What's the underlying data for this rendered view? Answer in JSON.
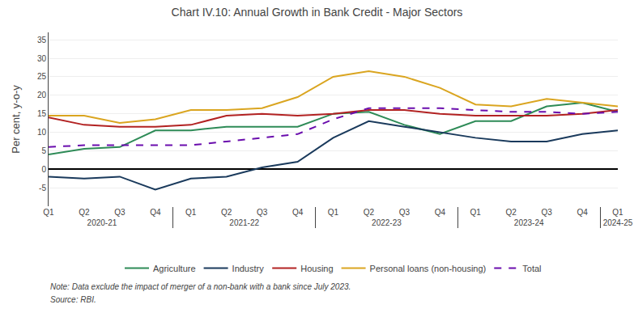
{
  "chart_data": {
    "type": "line",
    "title": "Chart IV.10: Annual Growth in Bank Credit - Major Sectors",
    "y_label": "Per cent, y-o-y",
    "categories": [
      "Q1",
      "Q2",
      "Q3",
      "Q4",
      "Q1",
      "Q2",
      "Q3",
      "Q4",
      "Q1",
      "Q2",
      "Q3",
      "Q4",
      "Q1",
      "Q2",
      "Q3",
      "Q4",
      "Q1"
    ],
    "category_groups": [
      "2020-21",
      "2020-21",
      "2020-21",
      "2020-21",
      "2021-22",
      "2021-22",
      "2021-22",
      "2021-22",
      "2022-23",
      "2022-23",
      "2022-23",
      "2022-23",
      "2023-24",
      "2023-24",
      "2023-24",
      "2023-24",
      "2024-25"
    ],
    "series": [
      {
        "name": "Agriculture",
        "color": "#2e8b57",
        "line_style": "solid",
        "values": [
          4.0,
          5.5,
          6.0,
          10.5,
          10.5,
          11.5,
          11.5,
          11.5,
          15.0,
          15.5,
          12.0,
          9.5,
          13.0,
          13.0,
          17.0,
          18.0,
          15.5
        ]
      },
      {
        "name": "Industry",
        "color": "#1a3a5c",
        "line_style": "solid",
        "values": [
          -2.0,
          -2.5,
          -2.0,
          -5.5,
          -2.5,
          -2.0,
          0.5,
          2.0,
          8.5,
          13.0,
          11.5,
          10.0,
          8.5,
          7.5,
          7.5,
          9.5,
          10.5
        ]
      },
      {
        "name": "Housing",
        "color": "#b22222",
        "line_style": "solid",
        "values": [
          14.0,
          12.0,
          11.5,
          11.5,
          12.0,
          14.5,
          15.0,
          14.5,
          15.0,
          16.0,
          16.0,
          15.0,
          14.5,
          14.5,
          14.5,
          15.0,
          16.0
        ]
      },
      {
        "name": "Personal loans (non-housing)",
        "color": "#daa520",
        "line_style": "solid",
        "values": [
          14.5,
          14.5,
          12.5,
          13.5,
          16.0,
          16.0,
          16.5,
          19.5,
          25.0,
          26.5,
          25.0,
          22.0,
          17.5,
          17.0,
          19.0,
          18.0,
          17.0
        ]
      },
      {
        "name": "Total",
        "color": "#6a0dad",
        "line_style": "dashed",
        "values": [
          6.0,
          6.5,
          6.5,
          6.5,
          6.5,
          7.5,
          8.5,
          9.5,
          13.5,
          16.5,
          16.5,
          16.5,
          16.0,
          15.5,
          15.5,
          15.0,
          15.5
        ]
      }
    ],
    "ylim": [
      -10,
      37
    ],
    "yticks": [
      -5,
      0,
      5,
      10,
      15,
      20,
      25,
      30,
      35
    ],
    "grid": true,
    "legend": "bottom",
    "note": "Note: Data exclude the impact of merger of a non-bank with a bank since July 2023.",
    "source": "Source: RBI."
  }
}
